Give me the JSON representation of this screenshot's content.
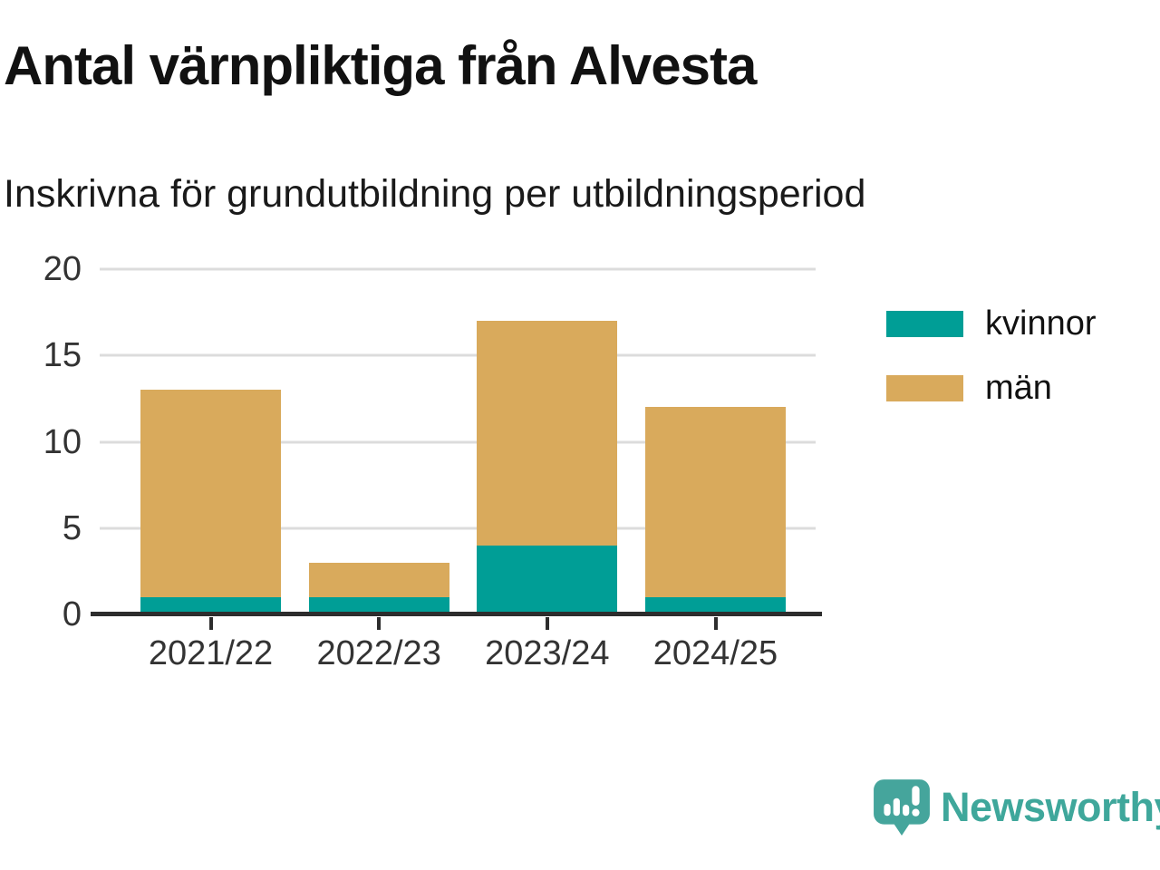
{
  "header": {
    "title": "Antal värnpliktiga från Alvesta",
    "subtitle": "Inskrivna för grundutbildning per utbildningsperiod"
  },
  "chart_data": {
    "type": "bar",
    "stacked": true,
    "title": "Antal värnpliktiga från Alvesta",
    "subtitle": "Inskrivna för grundutbildning per utbildningsperiod",
    "categories": [
      "2021/22",
      "2022/23",
      "2023/24",
      "2024/25"
    ],
    "series": [
      {
        "name": "kvinnor",
        "color": "#009E96",
        "values": [
          1,
          1,
          4,
          1
        ]
      },
      {
        "name": "män",
        "color": "#D9AA5C",
        "values": [
          12,
          2,
          13,
          11
        ]
      }
    ],
    "totals": [
      13,
      3,
      17,
      12
    ],
    "xlabel": "",
    "ylabel": "",
    "ylim": [
      0,
      20
    ],
    "yticks": [
      0,
      5,
      10,
      15,
      20
    ],
    "grid": "horizontal",
    "legend_position": "right",
    "colors": {
      "grid": "#dcdcdc",
      "axis": "#2d2d2d",
      "tick_text": "#333333"
    }
  },
  "footer": {
    "brand": "Newsworthy",
    "brand_color": "#3FA79B",
    "logo_icon": "newsworthy-speech-bubble-bar-chart-icon"
  }
}
